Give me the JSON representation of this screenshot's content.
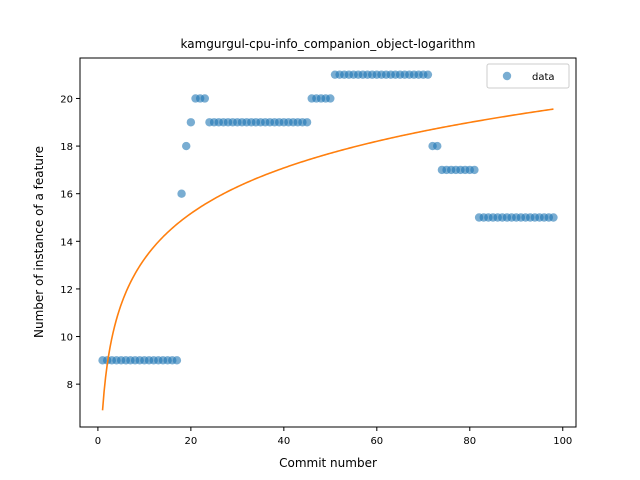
{
  "chart_data": {
    "type": "scatter",
    "title": "kamgurgul-cpu-info_companion_object-logarithm",
    "xlabel": "Commit number",
    "ylabel": "Number of instance of a feature",
    "xlim": [
      -3.85,
      102.85
    ],
    "ylim": [
      6.2,
      21.7
    ],
    "xticks": [
      0,
      20,
      40,
      60,
      80,
      100
    ],
    "yticks": [
      8,
      10,
      12,
      14,
      16,
      18,
      20
    ],
    "grid": false,
    "legend": {
      "position": "top-right",
      "entries": [
        {
          "label": "data",
          "marker": "circle",
          "color": "#1f77b4"
        }
      ]
    },
    "series": [
      {
        "name": "data",
        "kind": "scatter",
        "color": "#1f77b4",
        "x": [
          1,
          2,
          3,
          4,
          5,
          6,
          7,
          8,
          9,
          10,
          11,
          12,
          13,
          14,
          15,
          16,
          17,
          18,
          19,
          20,
          21,
          22,
          23,
          24,
          25,
          26,
          27,
          28,
          29,
          30,
          31,
          32,
          33,
          34,
          35,
          36,
          37,
          38,
          39,
          40,
          41,
          42,
          43,
          44,
          45,
          46,
          47,
          48,
          49,
          50,
          51,
          52,
          53,
          54,
          55,
          56,
          57,
          58,
          59,
          60,
          61,
          62,
          63,
          64,
          65,
          66,
          67,
          68,
          69,
          70,
          71,
          72,
          73,
          74,
          75,
          76,
          77,
          78,
          79,
          80,
          81,
          82,
          83,
          84,
          85,
          86,
          87,
          88,
          89,
          90,
          91,
          92,
          93,
          94,
          95,
          96,
          97,
          98
        ],
        "y": [
          9,
          9,
          9,
          9,
          9,
          9,
          9,
          9,
          9,
          9,
          9,
          9,
          9,
          9,
          9,
          9,
          9,
          16,
          18,
          19,
          20,
          20,
          20,
          19,
          19,
          19,
          19,
          19,
          19,
          19,
          19,
          19,
          19,
          19,
          19,
          19,
          19,
          19,
          19,
          19,
          19,
          19,
          19,
          19,
          19,
          20,
          20,
          20,
          20,
          20,
          21,
          21,
          21,
          21,
          21,
          21,
          21,
          21,
          21,
          21,
          21,
          21,
          21,
          21,
          21,
          21,
          21,
          21,
          21,
          21,
          21,
          18,
          18,
          17,
          17,
          17,
          17,
          17,
          17,
          17,
          17,
          15,
          15,
          15,
          15,
          15,
          15,
          15,
          15,
          15,
          15,
          15,
          15,
          15,
          15,
          15,
          15,
          15
        ]
      },
      {
        "name": "",
        "kind": "line",
        "color": "#ff7f0e",
        "x_start": 1,
        "x_end": 98,
        "model": "y = 6.9 + 2.76 * ln(x)"
      }
    ]
  }
}
